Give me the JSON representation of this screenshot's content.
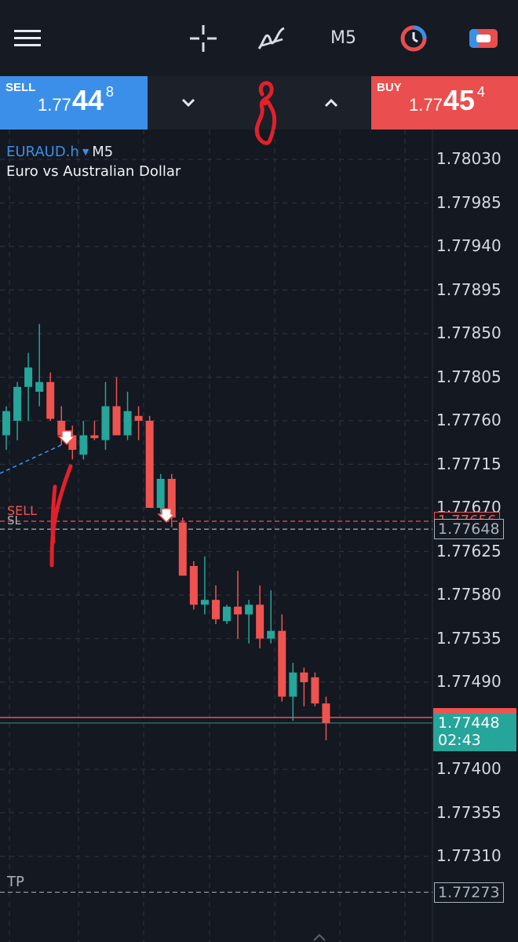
{
  "toolbar": {
    "menu_icon": "hamburger-menu-icon",
    "crosshair_icon": "crosshair-icon",
    "indicators_icon": "indicators-icon",
    "timeframe": "M5",
    "history_icon": "clock-history-icon",
    "trade_icon": "trade-toggle-icon"
  },
  "trade": {
    "sell_label": "SELL",
    "sell_price_small": "1.77",
    "sell_price_big": "44",
    "sell_price_sup": "8",
    "buy_label": "BUY",
    "buy_price_small": "1.77",
    "buy_price_big": "45",
    "buy_price_sup": "4",
    "lot_value": ""
  },
  "symbol": {
    "name": "EURAUD.h",
    "timeframe": "M5",
    "description": "Euro vs Australian Dollar"
  },
  "price_axis": [
    "1.78030",
    "1.77985",
    "1.77940",
    "1.77895",
    "1.77850",
    "1.77805",
    "1.77760",
    "1.77715",
    "1.77670",
    "1.77625",
    "1.77580",
    "1.77535",
    "1.77490",
    "1.77400",
    "1.77355",
    "1.77310"
  ],
  "levels": {
    "sell_label": "SELL",
    "sl_label": "SL",
    "sl_price": "1.77648",
    "sell_price_hidden": "1.77656",
    "current_price": "1.77448",
    "countdown": "02:43",
    "tp_label": "TP",
    "tp_price": "1.77273"
  },
  "colors": {
    "background": "#131821",
    "bull": "#26a59a",
    "bear": "#ef5350",
    "sell": "#3b8fe8",
    "buy": "#ea4e4e"
  },
  "chart_data": {
    "type": "candlestick",
    "ylim": [
      1.7725,
      1.7806
    ],
    "candles": [
      {
        "o": 1.77745,
        "h": 1.77775,
        "l": 1.7773,
        "c": 1.7777
      },
      {
        "o": 1.7776,
        "h": 1.778,
        "l": 1.7774,
        "c": 1.77795
      },
      {
        "o": 1.77795,
        "h": 1.7783,
        "l": 1.7776,
        "c": 1.77815
      },
      {
        "o": 1.7779,
        "h": 1.7786,
        "l": 1.77775,
        "c": 1.778
      },
      {
        "o": 1.778,
        "h": 1.7781,
        "l": 1.7776,
        "c": 1.77762
      },
      {
        "o": 1.7776,
        "h": 1.77775,
        "l": 1.77735,
        "c": 1.77745
      },
      {
        "o": 1.77745,
        "h": 1.77755,
        "l": 1.7772,
        "c": 1.7773
      },
      {
        "o": 1.77725,
        "h": 1.7776,
        "l": 1.7772,
        "c": 1.77745
      },
      {
        "o": 1.77745,
        "h": 1.7776,
        "l": 1.7774,
        "c": 1.77742
      },
      {
        "o": 1.7774,
        "h": 1.778,
        "l": 1.7773,
        "c": 1.77775
      },
      {
        "o": 1.77775,
        "h": 1.77805,
        "l": 1.77745,
        "c": 1.77745
      },
      {
        "o": 1.77745,
        "h": 1.7779,
        "l": 1.7774,
        "c": 1.7777
      },
      {
        "o": 1.77765,
        "h": 1.77775,
        "l": 1.7774,
        "c": 1.7776
      },
      {
        "o": 1.7776,
        "h": 1.77765,
        "l": 1.7767,
        "c": 1.7767
      },
      {
        "o": 1.7767,
        "h": 1.77705,
        "l": 1.77665,
        "c": 1.777
      },
      {
        "o": 1.777,
        "h": 1.77705,
        "l": 1.7765,
        "c": 1.7766
      },
      {
        "o": 1.77655,
        "h": 1.7766,
        "l": 1.776,
        "c": 1.776
      },
      {
        "o": 1.7761,
        "h": 1.77615,
        "l": 1.77565,
        "c": 1.7757
      },
      {
        "o": 1.7757,
        "h": 1.7762,
        "l": 1.7756,
        "c": 1.77575
      },
      {
        "o": 1.77575,
        "h": 1.7759,
        "l": 1.7755,
        "c": 1.77555
      },
      {
        "o": 1.77553,
        "h": 1.7757,
        "l": 1.7755,
        "c": 1.77568
      },
      {
        "o": 1.77568,
        "h": 1.77605,
        "l": 1.77535,
        "c": 1.7756
      },
      {
        "o": 1.7756,
        "h": 1.77575,
        "l": 1.7753,
        "c": 1.7757
      },
      {
        "o": 1.7757,
        "h": 1.7759,
        "l": 1.77525,
        "c": 1.77535
      },
      {
        "o": 1.77535,
        "h": 1.77585,
        "l": 1.7753,
        "c": 1.77543
      },
      {
        "o": 1.77543,
        "h": 1.7756,
        "l": 1.7747,
        "c": 1.77475
      },
      {
        "o": 1.77475,
        "h": 1.7751,
        "l": 1.7745,
        "c": 1.775
      },
      {
        "o": 1.775,
        "h": 1.77505,
        "l": 1.77465,
        "c": 1.7749
      },
      {
        "o": 1.77495,
        "h": 1.775,
        "l": 1.77465,
        "c": 1.77468
      },
      {
        "o": 1.77468,
        "h": 1.77475,
        "l": 1.7743,
        "c": 1.77448
      }
    ]
  }
}
